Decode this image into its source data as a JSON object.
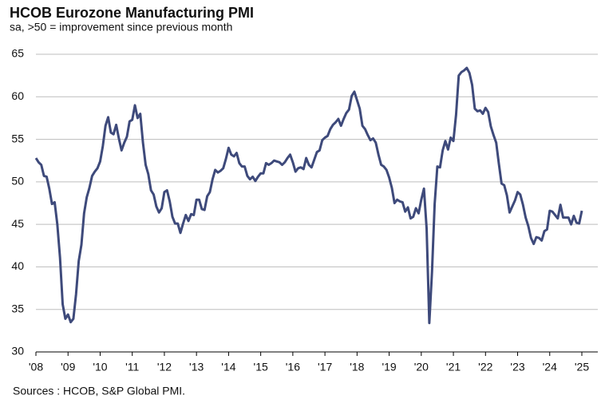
{
  "chart_data": {
    "type": "line",
    "title": "HCOB Eurozone Manufacturing PMI",
    "subtitle": "sa, >50 = improvement  since previous month",
    "source": "Sources : HCOB, S&P Global PMI.",
    "categories": [
      "'08",
      null,
      null,
      null,
      null,
      null,
      null,
      null,
      null,
      null,
      null,
      null,
      "'09",
      null,
      null,
      null,
      null,
      null,
      null,
      null,
      null,
      null,
      null,
      null,
      "'10",
      null,
      null,
      null,
      null,
      null,
      null,
      null,
      null,
      null,
      null,
      null,
      "'11",
      null,
      null,
      null,
      null,
      null,
      null,
      null,
      null,
      null,
      null,
      null,
      "'12",
      null,
      null,
      null,
      null,
      null,
      null,
      null,
      null,
      null,
      null,
      null,
      "'13",
      null,
      null,
      null,
      null,
      null,
      null,
      null,
      null,
      null,
      null,
      null,
      "'14",
      null,
      null,
      null,
      null,
      null,
      null,
      null,
      null,
      null,
      null,
      null,
      "'15",
      null,
      null,
      null,
      null,
      null,
      null,
      null,
      null,
      null,
      null,
      null,
      "'16",
      null,
      null,
      null,
      null,
      null,
      null,
      null,
      null,
      null,
      null,
      null,
      "'17",
      null,
      null,
      null,
      null,
      null,
      null,
      null,
      null,
      null,
      null,
      null,
      "'18",
      null,
      null,
      null,
      null,
      null,
      null,
      null,
      null,
      null,
      null,
      null,
      "'19",
      null,
      null,
      null,
      null,
      null,
      null,
      null,
      null,
      null,
      null,
      null,
      "'20",
      null,
      null,
      null,
      null,
      null,
      null,
      null,
      null,
      null,
      null,
      null,
      "'21",
      null,
      null,
      null,
      null,
      null,
      null,
      null,
      null,
      null,
      null,
      null,
      "'22",
      null,
      null,
      null,
      null,
      null,
      null,
      null,
      null,
      null,
      null,
      null,
      "'23",
      null,
      null,
      null,
      null,
      null,
      null,
      null,
      null,
      null,
      null,
      null,
      "'24",
      null,
      null,
      null,
      null,
      null,
      null,
      null,
      null,
      null,
      null,
      null,
      "'25"
    ],
    "values": [
      52.8,
      52.3,
      52.0,
      50.7,
      50.6,
      49.2,
      47.4,
      47.6,
      45.0,
      41.1,
      35.6,
      33.9,
      34.4,
      33.5,
      33.9,
      36.8,
      40.7,
      42.6,
      46.3,
      48.2,
      49.3,
      50.7,
      51.2,
      51.6,
      52.4,
      54.2,
      56.6,
      57.6,
      55.8,
      55.6,
      56.7,
      55.1,
      53.7,
      54.6,
      55.3,
      57.1,
      57.3,
      59.0,
      57.5,
      58.0,
      54.6,
      52.0,
      50.9,
      49.0,
      48.5,
      47.1,
      46.4,
      46.9,
      48.8,
      49.0,
      47.7,
      45.9,
      45.1,
      45.1,
      44.0,
      45.1,
      46.1,
      45.4,
      46.2,
      46.1,
      47.9,
      47.9,
      46.8,
      46.7,
      48.3,
      48.8,
      50.3,
      51.4,
      51.1,
      51.3,
      51.6,
      52.7,
      54.0,
      53.2,
      53.0,
      53.4,
      52.2,
      51.8,
      51.8,
      50.7,
      50.3,
      50.6,
      50.1,
      50.6,
      51.0,
      51.0,
      52.2,
      52.0,
      52.2,
      52.5,
      52.4,
      52.3,
      52.0,
      52.3,
      52.8,
      53.2,
      52.3,
      51.2,
      51.6,
      51.7,
      51.5,
      52.8,
      52.0,
      51.7,
      52.6,
      53.5,
      53.7,
      54.9,
      55.2,
      55.4,
      56.2,
      56.7,
      57.0,
      57.4,
      56.6,
      57.4,
      58.1,
      58.5,
      60.1,
      60.6,
      59.6,
      58.6,
      56.6,
      56.2,
      55.5,
      54.9,
      55.1,
      54.6,
      53.2,
      52.0,
      51.8,
      51.4,
      50.5,
      49.3,
      47.5,
      47.9,
      47.7,
      47.6,
      46.5,
      47.0,
      45.7,
      45.9,
      46.9,
      46.3,
      47.9,
      49.2,
      44.5,
      33.4,
      39.4,
      47.4,
      51.8,
      51.7,
      53.7,
      54.8,
      53.8,
      55.2,
      54.8,
      57.9,
      62.5,
      62.9,
      63.1,
      63.4,
      62.8,
      61.4,
      58.6,
      58.3,
      58.4,
      58.0,
      58.7,
      58.2,
      56.5,
      55.5,
      54.6,
      52.1,
      49.8,
      49.6,
      48.4,
      46.4,
      47.1,
      47.8,
      48.8,
      48.5,
      47.3,
      45.8,
      44.8,
      43.4,
      42.7,
      43.5,
      43.4,
      43.1,
      44.2,
      44.4,
      46.6,
      46.5,
      46.1,
      45.7,
      47.3,
      45.8,
      45.8,
      45.8,
      45.0,
      46.0,
      45.2,
      45.1,
      46.6
    ],
    "color": "#3e4a7b",
    "ylim": [
      30,
      65
    ],
    "yticks": [
      30,
      35,
      40,
      45,
      50,
      55,
      60,
      65
    ],
    "grid": true
  }
}
